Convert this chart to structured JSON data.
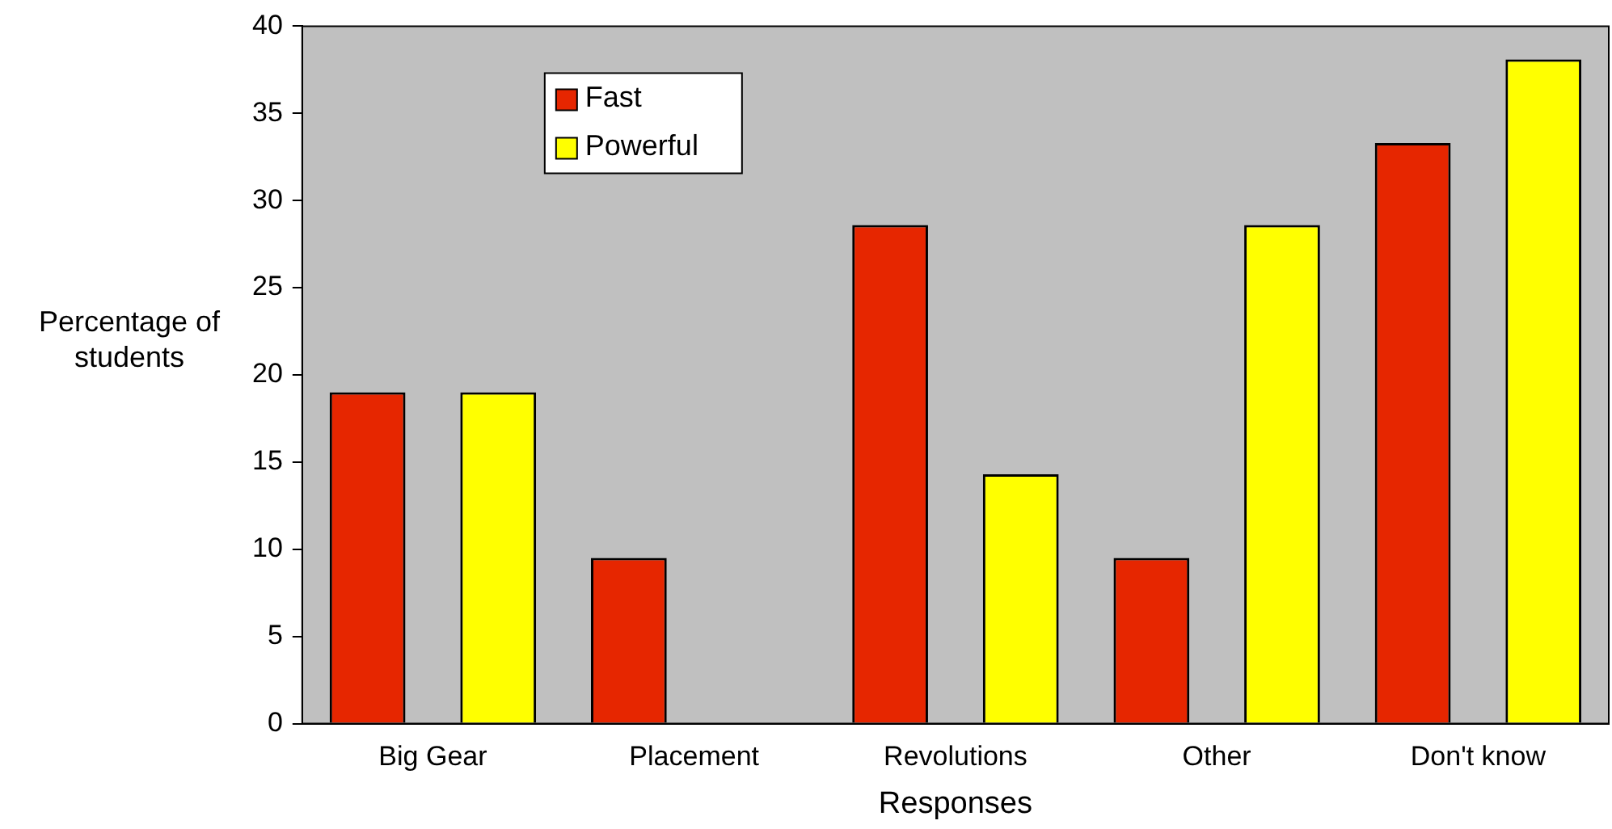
{
  "chart_data": {
    "type": "bar",
    "xlabel": "Responses",
    "ylabel": "Percentage of students",
    "categories": [
      "Big Gear",
      "Placement",
      "Revolutions",
      "Other",
      "Don't know"
    ],
    "series": [
      {
        "name": "Fast",
        "color": "#e62600",
        "values": [
          19,
          9.5,
          28.6,
          9.5,
          33.3
        ]
      },
      {
        "name": "Powerful",
        "color": "#ffff00",
        "values": [
          19,
          0,
          14.3,
          28.6,
          38.1
        ]
      }
    ],
    "ylim": [
      0,
      40
    ],
    "yticks": [
      0,
      5,
      10,
      15,
      20,
      25,
      30,
      35,
      40
    ],
    "grid": false,
    "legend": "top left"
  }
}
